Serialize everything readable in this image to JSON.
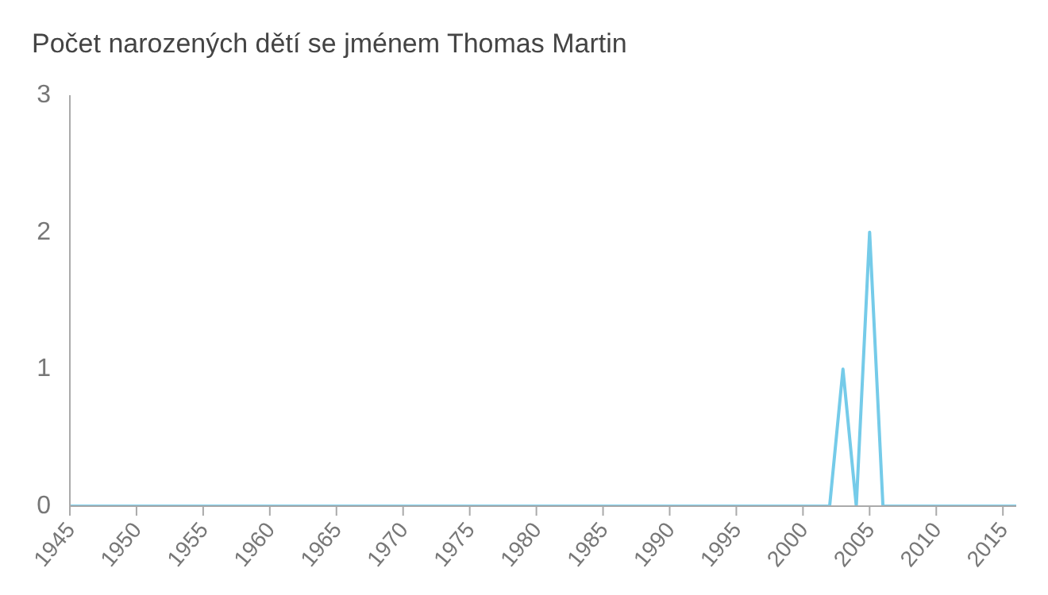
{
  "chart_data": {
    "type": "line",
    "title": "Počet narozených dětí se jménem Thomas Martin",
    "x": [
      1945,
      1946,
      1947,
      1948,
      1949,
      1950,
      1951,
      1952,
      1953,
      1954,
      1955,
      1956,
      1957,
      1958,
      1959,
      1960,
      1961,
      1962,
      1963,
      1964,
      1965,
      1966,
      1967,
      1968,
      1969,
      1970,
      1971,
      1972,
      1973,
      1974,
      1975,
      1976,
      1977,
      1978,
      1979,
      1980,
      1981,
      1982,
      1983,
      1984,
      1985,
      1986,
      1987,
      1988,
      1989,
      1990,
      1991,
      1992,
      1993,
      1994,
      1995,
      1996,
      1997,
      1998,
      1999,
      2000,
      2001,
      2002,
      2003,
      2004,
      2005,
      2006,
      2007,
      2008,
      2009,
      2010,
      2011,
      2012,
      2013,
      2014,
      2015,
      2016
    ],
    "series": [
      {
        "color": "#75cbe9",
        "values": [
          0,
          0,
          0,
          0,
          0,
          0,
          0,
          0,
          0,
          0,
          0,
          0,
          0,
          0,
          0,
          0,
          0,
          0,
          0,
          0,
          0,
          0,
          0,
          0,
          0,
          0,
          0,
          0,
          0,
          0,
          0,
          0,
          0,
          0,
          0,
          0,
          0,
          0,
          0,
          0,
          0,
          0,
          0,
          0,
          0,
          0,
          0,
          0,
          0,
          0,
          0,
          0,
          0,
          0,
          0,
          0,
          0,
          0,
          1,
          0,
          2,
          0,
          0,
          0,
          0,
          0,
          0,
          0,
          0,
          0,
          0,
          0
        ]
      }
    ],
    "xlim": [
      1945,
      2016
    ],
    "xticks": [
      1945,
      1950,
      1955,
      1960,
      1965,
      1970,
      1975,
      1980,
      1985,
      1990,
      1995,
      2000,
      2005,
      2010,
      2015
    ],
    "ylim": [
      0,
      3
    ],
    "yticks": [
      0,
      1,
      2,
      3
    ],
    "grid": false,
    "legend": false,
    "marker": "none"
  }
}
